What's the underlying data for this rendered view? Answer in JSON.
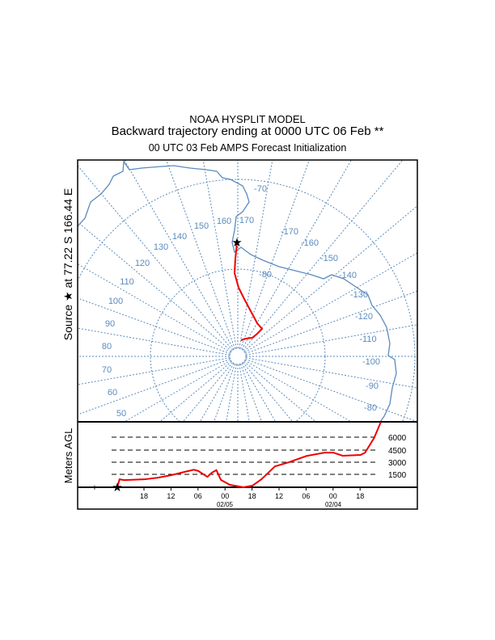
{
  "title": {
    "line1": "NOAA HYSPLIT MODEL",
    "line2": "Backward trajectory ending at 0000 UTC 06 Feb **",
    "line3": "00 UTC 03 Feb    AMPS  Forecast Initialization"
  },
  "source_label": "Source  ★  at   77.22 S  166.44 E",
  "map": {
    "longitude_labels": [
      "-70",
      "160",
      "170",
      "150",
      "140",
      "130",
      "120",
      "110",
      "100",
      "90",
      "80",
      "70",
      "60",
      "50",
      "-170",
      "-160",
      "-150",
      "-140",
      "-130",
      "-120",
      "-110",
      "-100",
      "-90",
      "-80",
      "-80"
    ],
    "colors": {
      "map": "#5b8bbd",
      "trajectory": "#ee0000"
    }
  },
  "chart_data": {
    "type": "line",
    "title": "Backward trajectory ending at 0000 UTC 06 Feb",
    "ylabel": "Meters AGL",
    "height_levels": [
      "6000",
      "4500",
      "3000",
      "1500"
    ],
    "x_tick_labels": [
      "18",
      "12",
      "06",
      "00",
      "18",
      "12",
      "06",
      "00",
      "18"
    ],
    "date_labels": [
      "02/05",
      "02/04"
    ],
    "series": [
      {
        "name": "trajectory",
        "hours_back": [
          0,
          0.5,
          1.5,
          6,
          9,
          12,
          15,
          17,
          18,
          20,
          21,
          22,
          23,
          25,
          28,
          30,
          32,
          35,
          38,
          42,
          46,
          48,
          50,
          54,
          55,
          57,
          58.5
        ],
        "height_m": [
          0,
          950,
          860,
          950,
          1150,
          1450,
          1850,
          2100,
          1950,
          1250,
          1750,
          2050,
          880,
          290,
          0,
          190,
          960,
          2500,
          2980,
          3750,
          4150,
          4150,
          3780,
          3870,
          4150,
          5900,
          7800
        ]
      }
    ]
  }
}
